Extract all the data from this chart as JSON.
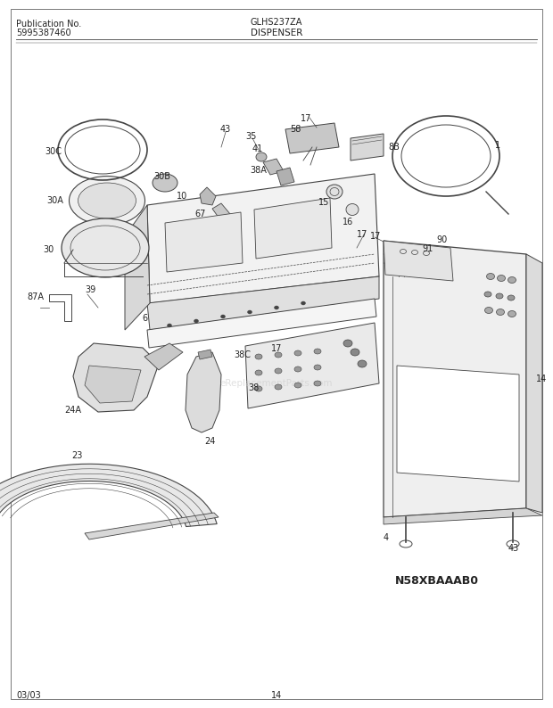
{
  "title_left_line1": "Publication No.",
  "title_left_line2": "5995387460",
  "title_center_top": "GLHS237ZA",
  "title_center_bottom": "DISPENSER",
  "footer_left": "03/03",
  "footer_center": "14",
  "model_code": "N58XBAAAB0",
  "bg_color": "#ffffff",
  "line_color": "#444444",
  "text_color": "#222222",
  "watermark": "eReplacementParts.com",
  "fig_w": 6.2,
  "fig_h": 7.94,
  "dpi": 100
}
